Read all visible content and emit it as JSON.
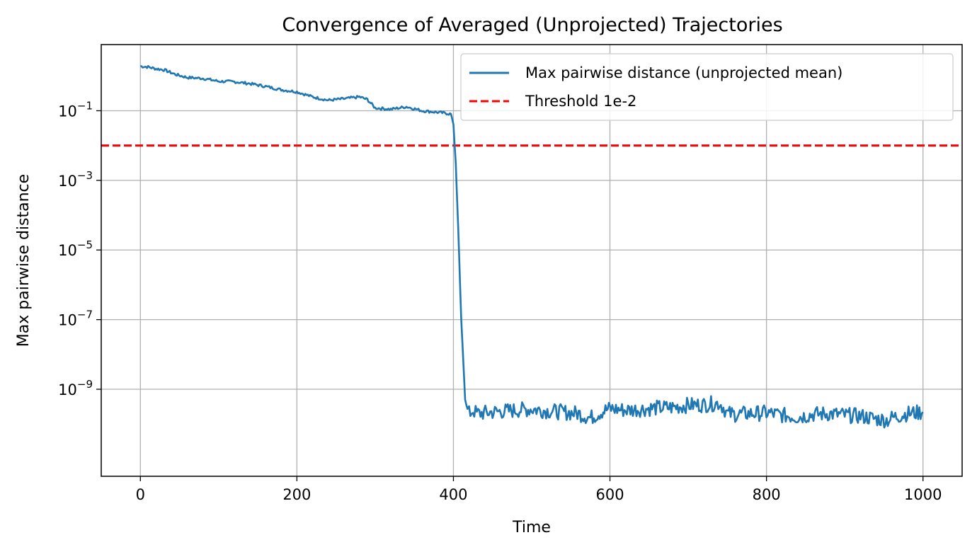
{
  "chart_data": {
    "type": "line",
    "title": "Convergence of Averaged (Unprojected) Trajectories",
    "xlabel": "Time",
    "ylabel": "Max pairwise distance",
    "xlim": [
      -50,
      1050
    ],
    "ylim_log10": [
      -11.5,
      0.9
    ],
    "log_y": true,
    "grid": true,
    "legend_position": "top-right",
    "x_ticks": [
      0,
      200,
      400,
      600,
      800,
      1000
    ],
    "y_ticks_exponent": [
      -1,
      -3,
      -5,
      -7,
      -9
    ],
    "colors": {
      "series": "#1f77b4",
      "threshold": "#ff0000"
    },
    "series": [
      {
        "name": "Max pairwise distance (unprojected mean)",
        "style": "solid",
        "x": [
          0,
          10,
          20,
          30,
          45,
          60,
          80,
          100,
          120,
          140,
          160,
          180,
          200,
          220,
          240,
          260,
          280,
          290,
          300,
          320,
          340,
          360,
          380,
          390,
          397,
          400,
          403,
          406,
          410,
          415,
          418,
          420,
          425,
          430,
          450,
          480,
          500,
          520,
          540,
          560,
          575,
          590,
          600,
          620,
          640,
          660,
          680,
          700,
          720,
          740,
          745,
          750,
          760,
          780,
          800,
          820,
          840,
          860,
          880,
          900,
          920,
          940,
          955,
          960,
          980,
          1000
        ],
        "y": [
          1.9,
          1.8,
          1.6,
          1.5,
          1.1,
          0.9,
          0.85,
          0.7,
          0.68,
          0.6,
          0.5,
          0.4,
          0.35,
          0.25,
          0.2,
          0.22,
          0.25,
          0.21,
          0.12,
          0.11,
          0.13,
          0.1,
          0.09,
          0.085,
          0.08,
          0.04,
          0.003,
          5e-05,
          1e-07,
          5e-10,
          2.5e-10,
          2e-10,
          2.5e-10,
          2e-10,
          2.2e-10,
          2.5e-10,
          2.7e-10,
          2.4e-10,
          2.2e-10,
          2e-10,
          1.5e-10,
          2.3e-10,
          2.8e-10,
          2.5e-10,
          2.7e-10,
          2.9e-10,
          3e-10,
          3.5e-10,
          3.6e-10,
          4e-10,
          3e-10,
          2e-10,
          1.9e-10,
          2e-10,
          2.1e-10,
          1.8e-10,
          1.6e-10,
          1.9e-10,
          2e-10,
          1.8e-10,
          1.7e-10,
          1.4e-10,
          1.3e-10,
          1.5e-10,
          2e-10,
          2.2e-10
        ]
      },
      {
        "name": "Threshold 1e-2",
        "style": "dashed",
        "x": [
          -50,
          1050
        ],
        "y": [
          0.01,
          0.01
        ]
      }
    ]
  }
}
